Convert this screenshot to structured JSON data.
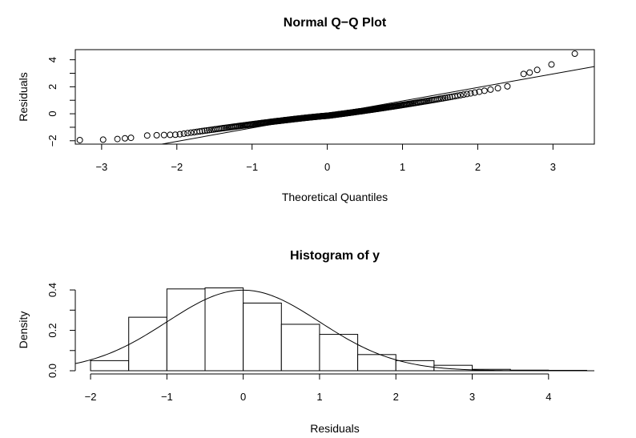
{
  "chart_data": [
    {
      "type": "scatter",
      "title": "Normal Q−Q Plot",
      "xlabel": "Theoretical Quantiles",
      "ylabel": "Residuals",
      "xlim": [
        -3.35,
        3.55
      ],
      "ylim": [
        -2.25,
        4.75
      ],
      "x_ticks": [
        -3,
        -2,
        -1,
        0,
        1,
        2,
        3
      ],
      "x_tick_labels": [
        "−3",
        "−2",
        "−1",
        "0",
        "1",
        "2",
        "3"
      ],
      "y_ticks": [
        -2,
        0,
        2,
        4
      ],
      "y_tick_labels": [
        "−2",
        "0",
        "2",
        "4"
      ],
      "grid": false,
      "n_points": 300,
      "reference_line": {
        "intercept": -0.05,
        "slope": 1.0
      },
      "tail_points": {
        "x": [
          -3.29,
          -2.98,
          -2.79,
          -2.69,
          -2.61,
          2.61,
          2.69,
          2.79,
          2.98,
          3.29
        ],
        "y": [
          -1.95,
          -1.92,
          -1.87,
          -1.82,
          -1.78,
          2.95,
          3.05,
          3.25,
          3.65,
          4.45
        ]
      }
    },
    {
      "type": "bar",
      "title": "Histogram of y",
      "xlabel": "Residuals",
      "ylabel": "Density",
      "xlim": [
        -2.2,
        4.6
      ],
      "ylim": [
        0,
        0.44
      ],
      "x_ticks": [
        -2,
        -1,
        0,
        1,
        2,
        3,
        4
      ],
      "x_tick_labels": [
        "−2",
        "−1",
        "0",
        "1",
        "2",
        "3",
        "4"
      ],
      "y_ticks": [
        0.0,
        0.2,
        0.4
      ],
      "y_tick_labels": [
        "0.0",
        "0.2",
        "0.4"
      ],
      "grid": false,
      "bin_edges": [
        -2,
        -1.5,
        -1,
        -0.5,
        0,
        0.5,
        1,
        1.5,
        2,
        2.5,
        3,
        3.5,
        4,
        4.5
      ],
      "densities": [
        0.05,
        0.265,
        0.405,
        0.41,
        0.335,
        0.23,
        0.18,
        0.08,
        0.05,
        0.027,
        0.007,
        0.003,
        0.002
      ],
      "overlay": {
        "type": "normal_density",
        "mean": 0,
        "sd": 1
      }
    }
  ]
}
